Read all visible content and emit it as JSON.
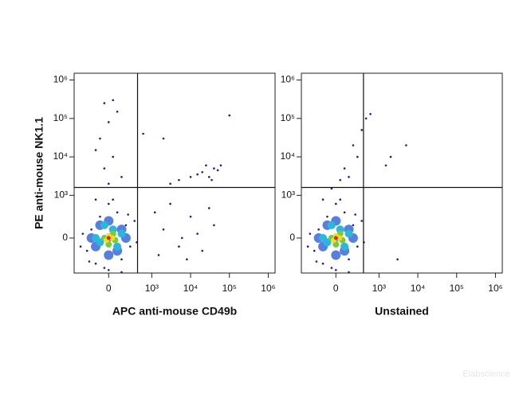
{
  "chart_data": [
    {
      "type": "scatter",
      "x_label": "APC anti-mouse CD49b",
      "y_label": "PE anti-mouse NK1.1",
      "scale": "biexponential",
      "xlim": [
        -800,
        1500000
      ],
      "ylim": [
        -820,
        1500000
      ],
      "xticks": [
        0,
        {
          "value": 1000,
          "label": "10³"
        },
        {
          "value": 10000,
          "label": "10⁴"
        },
        {
          "value": 100000,
          "label": "10⁵"
        },
        {
          "value": 1000000,
          "label": "10⁶"
        }
      ],
      "yticks": [
        0,
        {
          "value": 1000,
          "label": "10³"
        },
        {
          "value": 10000,
          "label": "10⁴"
        },
        {
          "value": 100000,
          "label": "10⁵"
        },
        {
          "value": 1000000,
          "label": "10⁶"
        }
      ],
      "gate": {
        "x": 670,
        "y": 1600
      },
      "series": [
        {
          "color": "#1c1c96",
          "size": 1.3,
          "x": [
            -500,
            -400,
            -300,
            -200,
            -600,
            300,
            400,
            500,
            200,
            -100,
            600,
            -450,
            450,
            0,
            0,
            -650,
            650,
            100,
            -300,
            300,
            0,
            -100,
            100,
            -200,
            0,
            200,
            -100,
            100,
            300,
            -300,
            20000,
            30000,
            40000,
            25000,
            15000,
            35000,
            50000,
            10000,
            5000,
            3000,
            60000,
            2000,
            5000,
            10000,
            20000,
            3000,
            8000,
            15000,
            40000,
            1500,
            30000,
            1200,
            6000,
            2000,
            100000,
            800
          ],
          "y": [
            -300,
            200,
            -600,
            500,
            100,
            -500,
            300,
            -200,
            600,
            -700,
            400,
            -550,
            550,
            800,
            -750,
            -200,
            -100,
            900,
            900,
            -800,
            2000,
            5000,
            10000,
            30000,
            80000,
            150000,
            250000,
            300000,
            3000,
            15000,
            4000,
            3000,
            5000,
            6000,
            3500,
            2500,
            4500,
            3000,
            2500,
            2000,
            6000,
            200,
            -200,
            500,
            -300,
            800,
            -500,
            100,
            300,
            -400,
            700,
            600,
            0,
            30000,
            120000,
            40000
          ]
        },
        {
          "color": "#2d5fd8",
          "size": 6,
          "x": [
            -300,
            300,
            -200,
            200,
            0,
            0,
            -400,
            400
          ],
          "y": [
            -200,
            200,
            300,
            -300,
            -400,
            400,
            0,
            0
          ]
        },
        {
          "color": "#2bb7d9",
          "size": 5,
          "x": [
            -200,
            100,
            200,
            -100,
            0,
            -300,
            300
          ],
          "y": [
            -100,
            200,
            -200,
            300,
            0,
            0,
            100
          ]
        },
        {
          "color": "#7ac943",
          "size": 4,
          "x": [
            -100,
            100,
            0,
            150
          ],
          "y": [
            0,
            100,
            -150,
            -50
          ]
        },
        {
          "color": "#f2e01f",
          "size": 3.5,
          "x": [
            0,
            -50,
            80
          ],
          "y": [
            50,
            -50,
            0
          ]
        },
        {
          "color": "#e0231e",
          "size": 2.5,
          "x": [
            0
          ],
          "y": [
            0
          ]
        }
      ]
    },
    {
      "type": "scatter",
      "x_label": "Unstained",
      "scale": "biexponential",
      "xlim": [
        -800,
        1500000
      ],
      "ylim": [
        -820,
        1500000
      ],
      "xticks": [
        0,
        {
          "value": 1000,
          "label": "10³"
        },
        {
          "value": 10000,
          "label": "10⁴"
        },
        {
          "value": 100000,
          "label": "10⁵"
        },
        {
          "value": 1000000,
          "label": "10⁶"
        }
      ],
      "yticks": [
        0,
        {
          "value": 1000,
          "label": "10³"
        },
        {
          "value": 10000,
          "label": "10⁴"
        },
        {
          "value": 100000,
          "label": "10⁵"
        },
        {
          "value": 1000000,
          "label": "10⁶"
        }
      ],
      "gate": {
        "x": 640,
        "y": 1600
      },
      "series": [
        {
          "color": "#1c1c96",
          "size": 1.3,
          "x": [
            -500,
            -400,
            -300,
            -200,
            -600,
            300,
            400,
            500,
            200,
            -100,
            600,
            -450,
            450,
            0,
            0,
            -650,
            650,
            100,
            -300,
            300,
            300,
            500,
            600,
            700,
            800,
            400,
            200,
            2000,
            5000,
            1500,
            3000,
            -100,
            100
          ],
          "y": [
            -300,
            200,
            -600,
            500,
            100,
            -500,
            300,
            -200,
            600,
            -700,
            400,
            -550,
            550,
            800,
            -750,
            -200,
            -100,
            900,
            900,
            -800,
            3000,
            10000,
            50000,
            100000,
            130000,
            20000,
            5000,
            10000,
            20000,
            6000,
            -500,
            1500,
            2500
          ]
        },
        {
          "color": "#2d5fd8",
          "size": 6,
          "x": [
            -300,
            300,
            -200,
            200,
            0,
            0,
            -400,
            400
          ],
          "y": [
            -200,
            200,
            300,
            -300,
            -400,
            400,
            0,
            0
          ]
        },
        {
          "color": "#2bb7d9",
          "size": 5,
          "x": [
            -200,
            100,
            200,
            -100,
            0,
            -300,
            300
          ],
          "y": [
            -100,
            200,
            -200,
            300,
            0,
            0,
            100
          ]
        },
        {
          "color": "#7ac943",
          "size": 4,
          "x": [
            -100,
            100,
            0,
            150
          ],
          "y": [
            0,
            100,
            -150,
            -50
          ]
        },
        {
          "color": "#f2e01f",
          "size": 3.5,
          "x": [
            0,
            -50,
            80
          ],
          "y": [
            50,
            -50,
            0
          ]
        },
        {
          "color": "#e0231e",
          "size": 2.5,
          "x": [
            0
          ],
          "y": [
            0
          ]
        }
      ]
    }
  ],
  "watermark": "Elabscience"
}
